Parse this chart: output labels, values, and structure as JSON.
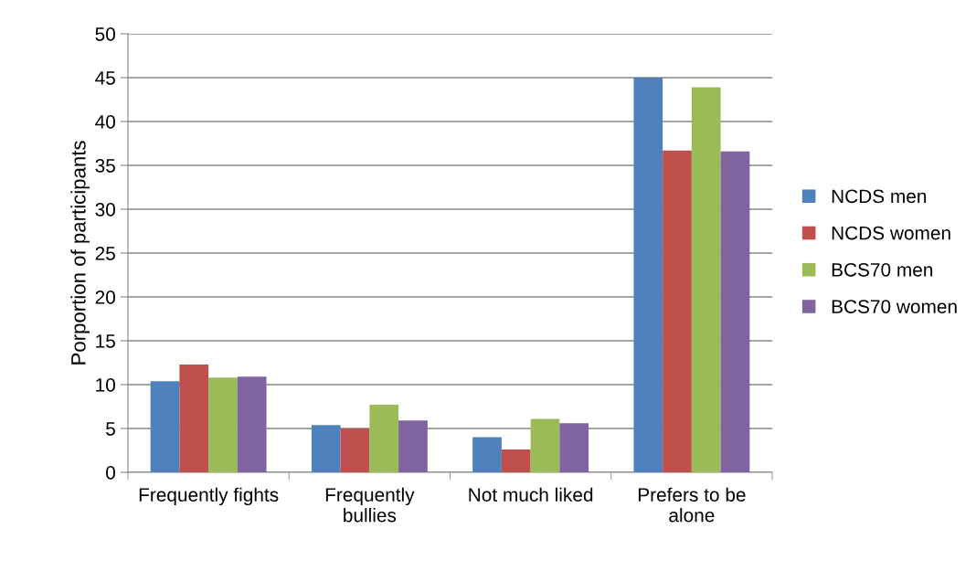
{
  "chart_data": {
    "type": "bar",
    "ylabel": "Porportion of participants",
    "categories": [
      "Frequently fights",
      "Frequently\nbullies",
      "Not much liked",
      "Prefers to be\nalone"
    ],
    "series": [
      {
        "name": "NCDS men",
        "color": "#4f81bd",
        "values": [
          10.4,
          5.4,
          4.0,
          45.0
        ]
      },
      {
        "name": "NCDS women",
        "color": "#c0504d",
        "values": [
          12.3,
          5.0,
          2.6,
          36.7
        ]
      },
      {
        "name": "BCS70 men",
        "color": "#9bbb59",
        "values": [
          10.8,
          7.7,
          6.1,
          43.9
        ]
      },
      {
        "name": "BCS70 women",
        "color": "#8064a2",
        "values": [
          10.9,
          5.9,
          5.6,
          36.6
        ]
      }
    ],
    "ylim": [
      0,
      50
    ],
    "yticks": [
      0,
      5,
      10,
      15,
      20,
      25,
      30,
      35,
      40,
      45,
      50
    ],
    "grid": "y",
    "legend": "right"
  }
}
